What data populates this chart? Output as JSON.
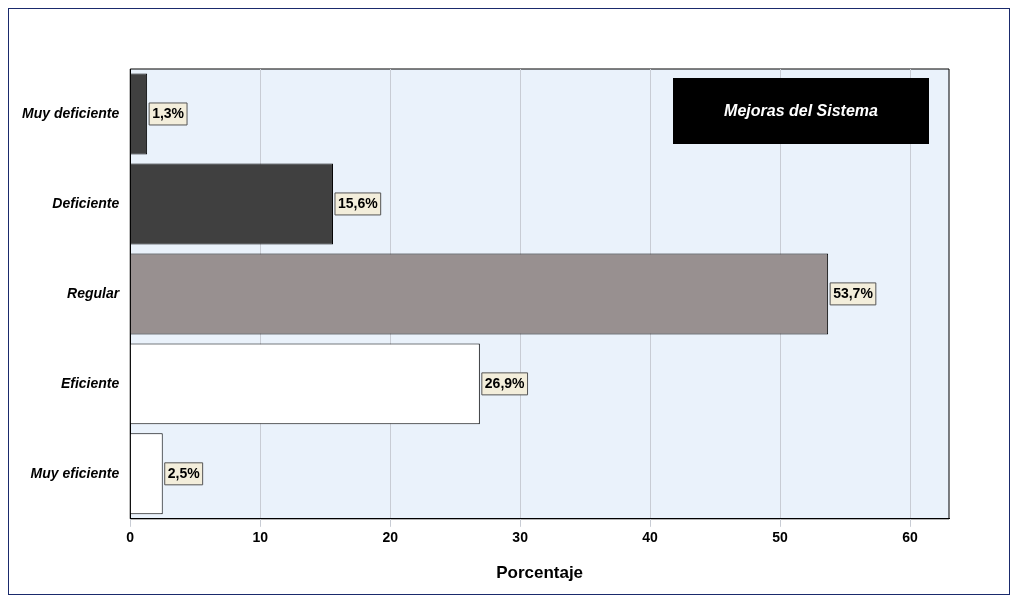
{
  "chart_data": {
    "type": "bar",
    "orientation": "horizontal",
    "title": "Mejoras del Sistema",
    "xlabel": "Porcentaje",
    "categories": [
      "Muy deficiente",
      "Deficiente",
      "Regular",
      "Eficiente",
      "Muy eficiente"
    ],
    "values": [
      1.3,
      15.6,
      53.7,
      26.9,
      2.5
    ],
    "colors": [
      "#404040",
      "#404040",
      "#989090",
      "#ffffff",
      "#ffffff"
    ],
    "value_labels": [
      "1,3%",
      "15,6%",
      "53,7%",
      "26,9%",
      "2,5%"
    ],
    "xlim": [
      0,
      63
    ],
    "xticks": [
      0,
      10,
      20,
      30,
      40,
      50,
      60
    ],
    "grid": "x",
    "legend": false
  }
}
